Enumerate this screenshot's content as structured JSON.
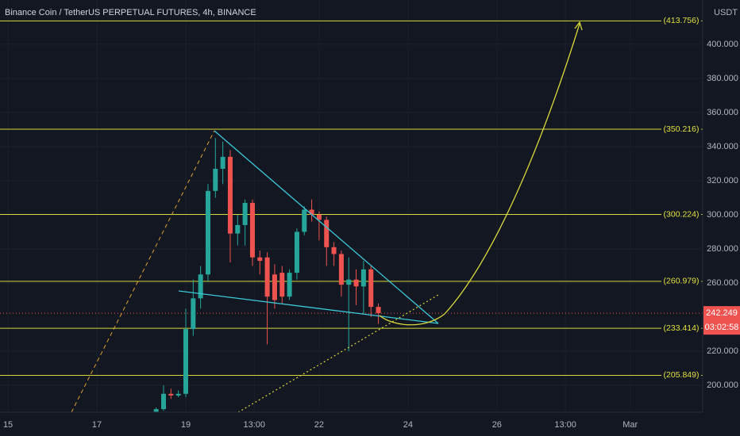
{
  "chart_data": {
    "type": "candlestick",
    "title": "Binance Coin / TetherUS PERPETUAL FUTURES, 4h, BINANCE",
    "currency": "USDT",
    "x": [
      18.3333,
      18.5,
      18.6667,
      18.8333,
      19,
      19.1667,
      19.3333,
      19.5,
      19.6667,
      19.8333,
      20,
      20.1667,
      20.3333,
      20.5,
      20.6667,
      20.8333,
      21,
      21.1667,
      21.3333,
      21.5,
      21.6667,
      21.8333,
      22,
      22.1667,
      22.3333,
      22.5,
      22.6667,
      22.8333,
      23,
      23.1667,
      23.3333
    ],
    "open": [
      184.5,
      186,
      195,
      194,
      195,
      233,
      251,
      265,
      314,
      327,
      334,
      289,
      294,
      307,
      275,
      275,
      265,
      266,
      252,
      266,
      290,
      303,
      300,
      297,
      281,
      277,
      259,
      262,
      258,
      268,
      246
    ],
    "high": [
      187,
      200,
      198,
      197,
      245,
      262,
      270,
      318,
      345,
      343,
      338,
      300,
      309,
      309,
      279,
      278,
      271,
      270,
      268,
      292,
      305,
      309,
      302,
      299,
      284,
      279,
      275,
      268,
      273,
      270,
      248
    ],
    "low": [
      183,
      185,
      192,
      193,
      193,
      229,
      245,
      261,
      310,
      318,
      272,
      282,
      282,
      270,
      265,
      224,
      245,
      248,
      250,
      262,
      288,
      296,
      285,
      270,
      270,
      252,
      220,
      247,
      242,
      240,
      236
    ],
    "close": [
      186,
      195,
      194,
      195,
      233,
      251,
      265,
      314,
      327,
      334,
      289,
      294,
      307,
      275,
      273,
      252,
      250,
      252,
      266,
      290,
      303,
      300,
      297,
      281,
      277,
      259,
      262,
      258,
      268,
      246,
      242.249
    ],
    "up_color": "#26a69a",
    "down_color": "#ef5350",
    "xlim": [
      14.82,
      30.63
    ],
    "xticks": [
      {
        "value": 15,
        "label": "15"
      },
      {
        "value": 17,
        "label": "17"
      },
      {
        "value": 19,
        "label": "19"
      },
      {
        "value": 20.5417,
        "label": "13:00"
      },
      {
        "value": 22,
        "label": "22"
      },
      {
        "value": 24,
        "label": "24"
      },
      {
        "value": 26,
        "label": "26"
      },
      {
        "value": 27.5417,
        "label": "13:00"
      },
      {
        "value": 29,
        "label": "Mar"
      }
    ],
    "ylim": [
      184.2,
      426.0
    ],
    "yticks": [
      {
        "value": 200,
        "label": "200.000"
      },
      {
        "value": 220,
        "label": "220.000"
      },
      {
        "value": 260,
        "label": "260.000"
      },
      {
        "value": 280,
        "label": "280.000"
      },
      {
        "value": 300,
        "label": "300.000"
      },
      {
        "value": 320,
        "label": "320.000"
      },
      {
        "value": 340,
        "label": "340.000"
      },
      {
        "value": 360,
        "label": "360.000"
      },
      {
        "value": 380,
        "label": "380.000"
      },
      {
        "value": 400,
        "label": "400.000"
      }
    ],
    "grid": true,
    "levels": [
      {
        "value": 413.756,
        "label": "(413.756)"
      },
      {
        "value": 350.216,
        "label": "(350.216)"
      },
      {
        "value": 300.224,
        "label": "(300.224)"
      },
      {
        "value": 260.979,
        "label": "(260.979)"
      },
      {
        "value": 233.414,
        "label": "(233.414)"
      },
      {
        "value": 205.849,
        "label": "(205.849)"
      }
    ],
    "level_color": "#d8d83a",
    "last_price": {
      "value": 242.249,
      "label": "242.249"
    },
    "countdown": "03:02:58"
  }
}
